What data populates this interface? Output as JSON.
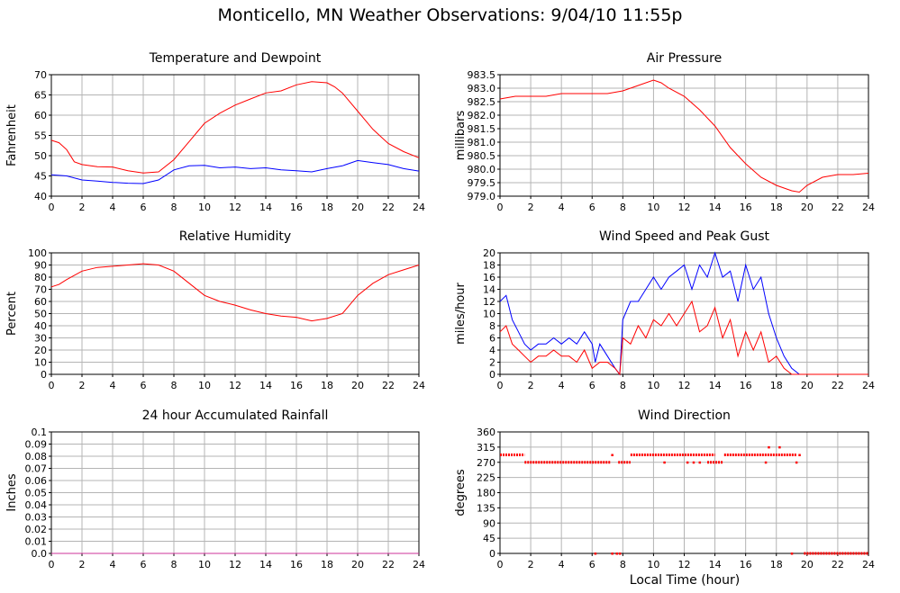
{
  "page": {
    "title": "Monticello, MN Weather Observations: 9/04/10 11:55p",
    "xlabel": "Local Time (hour)"
  },
  "colors": {
    "red": "#ff0000",
    "blue": "#0000ff",
    "grid": "#b4b4b4",
    "magenta": "#cc3399"
  },
  "chart_data": [
    {
      "id": "temp",
      "type": "line",
      "title": "Temperature and Dewpoint",
      "ylabel": "Fahrenheit",
      "xlim": [
        0,
        24
      ],
      "ylim": [
        40,
        70
      ],
      "xticks": [
        "0",
        "2",
        "4",
        "6",
        "8",
        "10",
        "12",
        "14",
        "16",
        "18",
        "20",
        "22",
        "24"
      ],
      "yticks": [
        "40",
        "45",
        "50",
        "55",
        "60",
        "65",
        "70"
      ],
      "grid": true,
      "series": [
        {
          "color": "#ff0000",
          "x": [
            0,
            0.5,
            1,
            1.5,
            2,
            3,
            4,
            5,
            6,
            7,
            8,
            9,
            10,
            11,
            12,
            13,
            14,
            15,
            16,
            17,
            18,
            18.5,
            19,
            20,
            21,
            22,
            23,
            24
          ],
          "y": [
            53.8,
            53.2,
            51.5,
            48.5,
            47.8,
            47.3,
            47.2,
            46.3,
            45.7,
            46.0,
            49.0,
            53.5,
            58.0,
            60.5,
            62.5,
            64.0,
            65.5,
            66.0,
            67.5,
            68.3,
            68.0,
            67.0,
            65.5,
            61.0,
            56.5,
            53.0,
            51.0,
            49.5
          ]
        },
        {
          "color": "#0000ff",
          "x": [
            0,
            1,
            2,
            3,
            4,
            5,
            6,
            7,
            8,
            9,
            10,
            11,
            12,
            13,
            14,
            15,
            16,
            17,
            18,
            19,
            20,
            21,
            22,
            23,
            24
          ],
          "y": [
            45.3,
            45.0,
            44.0,
            43.7,
            43.4,
            43.2,
            43.1,
            44.0,
            46.5,
            47.5,
            47.6,
            47.0,
            47.2,
            46.8,
            47.0,
            46.5,
            46.3,
            46.0,
            46.8,
            47.5,
            48.8,
            48.3,
            47.8,
            46.8,
            46.2
          ]
        }
      ]
    },
    {
      "id": "pressure",
      "type": "line",
      "title": "Air Pressure",
      "ylabel": "millibars",
      "xlim": [
        0,
        24
      ],
      "ylim": [
        979.0,
        983.5
      ],
      "xticks": [
        "0",
        "2",
        "4",
        "6",
        "8",
        "10",
        "12",
        "14",
        "16",
        "18",
        "20",
        "22",
        "24"
      ],
      "yticks": [
        "979.0",
        "979.5",
        "980.0",
        "980.5",
        "981.0",
        "981.5",
        "982.0",
        "982.5",
        "983.0",
        "983.5"
      ],
      "grid": true,
      "series": [
        {
          "color": "#ff0000",
          "x": [
            0,
            1,
            2,
            3,
            4,
            5,
            6,
            7,
            8,
            9,
            10,
            10.5,
            11,
            12,
            13,
            14,
            15,
            16,
            17,
            18,
            19,
            19.5,
            20,
            21,
            22,
            23,
            24
          ],
          "y": [
            982.6,
            982.7,
            982.7,
            982.7,
            982.8,
            982.8,
            982.8,
            982.8,
            982.9,
            983.1,
            983.3,
            983.2,
            983.0,
            982.7,
            982.2,
            981.6,
            980.8,
            980.2,
            979.7,
            979.4,
            979.2,
            979.15,
            979.4,
            979.7,
            979.8,
            979.8,
            979.85
          ]
        }
      ]
    },
    {
      "id": "humidity",
      "type": "line",
      "title": "Relative Humidity",
      "ylabel": "Percent",
      "xlim": [
        0,
        24
      ],
      "ylim": [
        0,
        100
      ],
      "xticks": [
        "0",
        "2",
        "4",
        "6",
        "8",
        "10",
        "12",
        "14",
        "16",
        "18",
        "20",
        "22",
        "24"
      ],
      "yticks": [
        "0",
        "10",
        "20",
        "30",
        "40",
        "50",
        "60",
        "70",
        "80",
        "90",
        "100"
      ],
      "grid": true,
      "series": [
        {
          "color": "#ff0000",
          "x": [
            0,
            0.5,
            1,
            2,
            3,
            4,
            5,
            6,
            7,
            8,
            9,
            10,
            11,
            12,
            13,
            14,
            15,
            16,
            17,
            18,
            19,
            20,
            21,
            22,
            23,
            24
          ],
          "y": [
            72,
            74,
            78,
            85,
            88,
            89,
            90,
            91,
            90,
            85,
            75,
            65,
            60,
            57,
            53,
            50,
            48,
            47,
            44,
            46,
            50,
            65,
            75,
            82,
            86,
            90
          ]
        }
      ]
    },
    {
      "id": "wind",
      "type": "line",
      "title": "Wind Speed and Peak Gust",
      "ylabel": "miles/hour",
      "xlim": [
        0,
        24
      ],
      "ylim": [
        0,
        20
      ],
      "xticks": [
        "0",
        "2",
        "4",
        "6",
        "8",
        "10",
        "12",
        "14",
        "16",
        "18",
        "20",
        "22",
        "24"
      ],
      "yticks": [
        "0",
        "2",
        "4",
        "6",
        "8",
        "10",
        "12",
        "14",
        "16",
        "18",
        "20"
      ],
      "grid": true,
      "series": [
        {
          "color": "#0000ff",
          "x": [
            0,
            0.4,
            0.8,
            1.2,
            1.6,
            2,
            2.5,
            3,
            3.5,
            4,
            4.5,
            5,
            5.5,
            6,
            6.2,
            6.5,
            7,
            7.5,
            7.8,
            8,
            8.5,
            9,
            9.5,
            10,
            10.5,
            11,
            11.5,
            12,
            12.5,
            13,
            13.5,
            14,
            14.5,
            15,
            15.5,
            16,
            16.5,
            17,
            17.5,
            18,
            18.5,
            19,
            19.5,
            20,
            21,
            22,
            23,
            24
          ],
          "y": [
            12,
            13,
            9,
            7,
            5,
            4,
            5,
            5,
            6,
            5,
            6,
            5,
            7,
            5,
            2,
            5,
            3,
            1,
            0,
            9,
            12,
            12,
            14,
            16,
            14,
            16,
            17,
            18,
            14,
            18,
            16,
            20,
            16,
            17,
            12,
            18,
            14,
            16,
            10,
            6,
            3,
            1,
            0,
            0,
            0,
            0,
            0,
            0
          ]
        },
        {
          "color": "#ff0000",
          "x": [
            0,
            0.4,
            0.8,
            1.2,
            1.6,
            2,
            2.5,
            3,
            3.5,
            4,
            4.5,
            5,
            5.5,
            6,
            6.5,
            7,
            7.5,
            7.8,
            8,
            8.5,
            9,
            9.5,
            10,
            10.5,
            11,
            11.5,
            12,
            12.5,
            13,
            13.5,
            14,
            14.5,
            15,
            15.5,
            16,
            16.5,
            17,
            17.5,
            18,
            18.5,
            19,
            19.5,
            20,
            21,
            22,
            23,
            24
          ],
          "y": [
            7,
            8,
            5,
            4,
            3,
            2,
            3,
            3,
            4,
            3,
            3,
            2,
            4,
            1,
            2,
            2,
            1,
            0,
            6,
            5,
            8,
            6,
            9,
            8,
            10,
            8,
            10,
            12,
            7,
            8,
            11,
            6,
            9,
            3,
            7,
            4,
            7,
            2,
            3,
            1,
            0,
            0,
            0,
            0,
            0,
            0,
            0
          ]
        }
      ]
    },
    {
      "id": "rain",
      "type": "line",
      "title": "24 hour Accumulated Rainfall",
      "ylabel": "Inches",
      "xlim": [
        0,
        24
      ],
      "ylim": [
        0,
        0.1
      ],
      "xticks": [
        "0",
        "2",
        "4",
        "6",
        "8",
        "10",
        "12",
        "14",
        "16",
        "18",
        "20",
        "22",
        "24"
      ],
      "yticks": [
        "0.0",
        "0.01",
        "0.02",
        "0.03",
        "0.04",
        "0.05",
        "0.06",
        "0.07",
        "0.08",
        "0.09",
        "0.1"
      ],
      "grid": true,
      "series": [
        {
          "color": "#cc3399",
          "x": [
            0,
            24
          ],
          "y": [
            0,
            0
          ]
        }
      ]
    },
    {
      "id": "direction",
      "type": "scatter",
      "title": "Wind Direction",
      "ylabel": "degrees",
      "xlim": [
        0,
        24
      ],
      "ylim": [
        0,
        360
      ],
      "xticks": [
        "0",
        "2",
        "4",
        "6",
        "8",
        "10",
        "12",
        "14",
        "16",
        "18",
        "20",
        "22",
        "24"
      ],
      "yticks": [
        "0",
        "45",
        "90",
        "135",
        "180",
        "225",
        "270",
        "315",
        "360"
      ],
      "grid": true,
      "series": [
        {
          "color": "#ff0000",
          "segments": [
            {
              "x0": 0.0,
              "x1": 1.6,
              "y": 292
            },
            {
              "x0": 1.6,
              "x1": 7.2,
              "y": 270
            },
            {
              "x0": 7.7,
              "x1": 8.5,
              "y": 270
            },
            {
              "x0": 8.5,
              "x1": 14.0,
              "y": 292
            },
            {
              "x0": 13.5,
              "x1": 14.5,
              "y": 270
            },
            {
              "x0": 14.6,
              "x1": 19.3,
              "y": 292
            },
            {
              "x0": 19.8,
              "x1": 24.0,
              "y": 0
            }
          ],
          "points": [
            [
              6.2,
              0
            ],
            [
              7.3,
              0
            ],
            [
              7.6,
              0
            ],
            [
              7.8,
              0
            ],
            [
              7.3,
              292
            ],
            [
              10.7,
              270
            ],
            [
              12.2,
              270
            ],
            [
              12.6,
              270
            ],
            [
              13.0,
              270
            ],
            [
              17.5,
              315
            ],
            [
              18.2,
              315
            ],
            [
              17.3,
              270
            ],
            [
              19.3,
              270
            ],
            [
              19.0,
              0
            ],
            [
              19.5,
              292
            ]
          ]
        }
      ]
    }
  ]
}
